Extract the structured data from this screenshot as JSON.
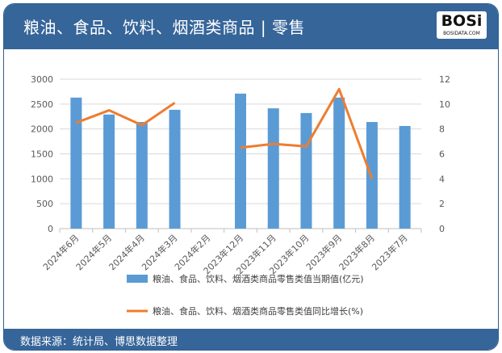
{
  "header": {
    "title": "粮油、食品、饮料、烟酒类商品 | 零售",
    "logo_text": "BOSi",
    "logo_sub": "BOSIDATA.COM"
  },
  "footer": {
    "source": "数据来源：统计局、博思数据整理"
  },
  "colors": {
    "bar": "#5b9bd5",
    "line": "#ed7d31",
    "header": "#366599"
  },
  "chart_data": {
    "type": "bar+line",
    "categories": [
      "2024年6月",
      "2024年5月",
      "2024年4月",
      "2024年3月",
      "2024年2月",
      "2023年12月",
      "2023年11月",
      "2023年10月",
      "2023年9月",
      "2023年8月",
      "2023年7月"
    ],
    "series": [
      {
        "name": "粮油、食品、饮料、烟酒类商品零售类值当期值(亿元)",
        "type": "bar",
        "axis": "left",
        "values": [
          2630,
          2290,
          2140,
          2385,
          null,
          2710,
          2415,
          2320,
          2630,
          2140,
          2060
        ]
      },
      {
        "name": "粮油、食品、饮料、烟酒类商品零售类值同比增长(%)",
        "type": "line",
        "axis": "right",
        "values": [
          8.5,
          9.5,
          8.3,
          10.1,
          null,
          6.5,
          6.8,
          6.6,
          11.2,
          4.0,
          null
        ]
      }
    ],
    "ylim_left": [
      0,
      3000
    ],
    "yticks_left": [
      "0",
      "500",
      "1000",
      "1500",
      "2000",
      "2500",
      "3000"
    ],
    "ylim_right": [
      0,
      12
    ],
    "yticks_right": [
      "0",
      "2",
      "4",
      "6",
      "8",
      "10",
      "12"
    ],
    "grid": true,
    "legend": "bottom"
  }
}
